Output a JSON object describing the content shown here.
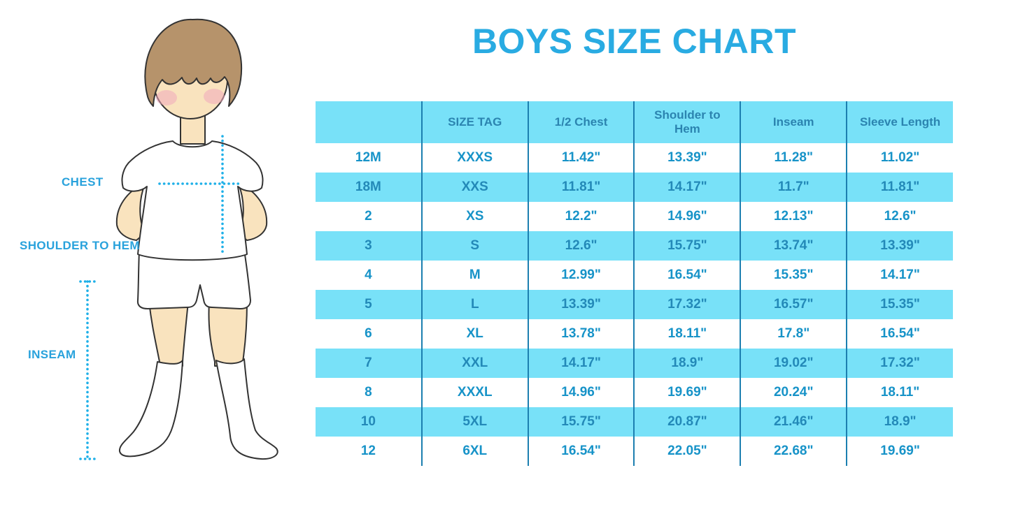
{
  "page": {
    "title": "BOYS SIZE CHART"
  },
  "figure": {
    "labels": {
      "chest": "CHEST",
      "shoulder_to_hem": "SHOULDER TO HEM",
      "inseam": "INSEAM"
    }
  },
  "table": {
    "row_keys": [
      "size",
      "size_tag",
      "half_chest",
      "shoulder_to_hem",
      "inseam",
      "sleeve_length"
    ],
    "headers": [
      "",
      "SIZE TAG",
      "1/2 Chest",
      "Shoulder to Hem",
      "Inseam",
      "Sleeve Length"
    ],
    "rows": [
      {
        "size": "12M",
        "size_tag": "XXXS",
        "half_chest": "11.42\"",
        "shoulder_to_hem": "13.39\"",
        "inseam": "11.28\"",
        "sleeve_length": "11.02\""
      },
      {
        "size": "18M",
        "size_tag": "XXS",
        "half_chest": "11.81\"",
        "shoulder_to_hem": "14.17\"",
        "inseam": "11.7\"",
        "sleeve_length": "11.81\""
      },
      {
        "size": "2",
        "size_tag": "XS",
        "half_chest": "12.2\"",
        "shoulder_to_hem": "14.96\"",
        "inseam": "12.13\"",
        "sleeve_length": "12.6\""
      },
      {
        "size": "3",
        "size_tag": "S",
        "half_chest": "12.6\"",
        "shoulder_to_hem": "15.75\"",
        "inseam": "13.74\"",
        "sleeve_length": "13.39\""
      },
      {
        "size": "4",
        "size_tag": "M",
        "half_chest": "12.99\"",
        "shoulder_to_hem": "16.54\"",
        "inseam": "15.35\"",
        "sleeve_length": "14.17\""
      },
      {
        "size": "5",
        "size_tag": "L",
        "half_chest": "13.39\"",
        "shoulder_to_hem": "17.32\"",
        "inseam": "16.57\"",
        "sleeve_length": "15.35\""
      },
      {
        "size": "6",
        "size_tag": "XL",
        "half_chest": "13.78\"",
        "shoulder_to_hem": "18.11\"",
        "inseam": "17.8\"",
        "sleeve_length": "16.54\""
      },
      {
        "size": "7",
        "size_tag": "XXL",
        "half_chest": "14.17\"",
        "shoulder_to_hem": "18.9\"",
        "inseam": "19.02\"",
        "sleeve_length": "17.32\""
      },
      {
        "size": "8",
        "size_tag": "XXXL",
        "half_chest": "14.96\"",
        "shoulder_to_hem": "19.69\"",
        "inseam": "20.24\"",
        "sleeve_length": "18.11\""
      },
      {
        "size": "10",
        "size_tag": "5XL",
        "half_chest": "15.75\"",
        "shoulder_to_hem": "20.87\"",
        "inseam": "21.46\"",
        "sleeve_length": "18.9\""
      },
      {
        "size": "12",
        "size_tag": "6XL",
        "half_chest": "16.54\"",
        "shoulder_to_hem": "22.05\"",
        "inseam": "22.68\"",
        "sleeve_length": "19.69\""
      }
    ]
  },
  "colors": {
    "title_blue": "#29ABE2",
    "band_cyan": "#78E1F8",
    "header_text_blue": "#2B84B0",
    "cell_text_blue": "#1793C8",
    "divider_blue": "#1C7FB0",
    "label_blue": "#29A2DC",
    "dotted_line_blue": "#1FB0E8",
    "skin": "#F9E3BE",
    "hair_brown": "#B6936B"
  }
}
